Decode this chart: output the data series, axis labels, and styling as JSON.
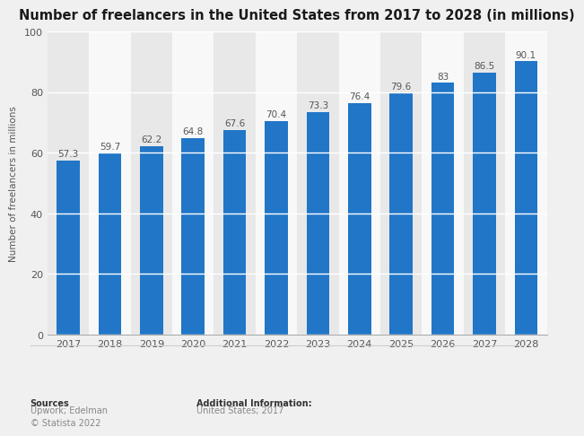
{
  "title": "Number of freelancers in the United States from 2017 to 2028 (in millions)",
  "years": [
    2017,
    2018,
    2019,
    2020,
    2021,
    2022,
    2023,
    2024,
    2025,
    2026,
    2027,
    2028
  ],
  "values": [
    57.3,
    59.7,
    62.2,
    64.8,
    67.6,
    70.4,
    73.3,
    76.4,
    79.6,
    83,
    86.5,
    90.1
  ],
  "bar_color": "#2176C7",
  "ylabel": "Number of freelancers in millions",
  "ylim": [
    0,
    100
  ],
  "yticks": [
    0,
    20,
    40,
    60,
    80,
    100
  ],
  "background_color": "#f0f0f0",
  "plot_bg_color": "#f0f0f0",
  "col_bg_odd": "#e8e8e8",
  "col_bg_even": "#f8f8f8",
  "grid_color": "#ffffff",
  "title_fontsize": 10.5,
  "label_fontsize": 7.5,
  "tick_fontsize": 8,
  "bar_label_fontsize": 7.5,
  "bar_label_color": "#555555",
  "sources_text_bold": "Sources",
  "sources_text_normal": "Upwork; Edelman\n© Statista 2022",
  "additional_text_bold": "Additional Information:",
  "additional_text_normal": "United States; 2017"
}
